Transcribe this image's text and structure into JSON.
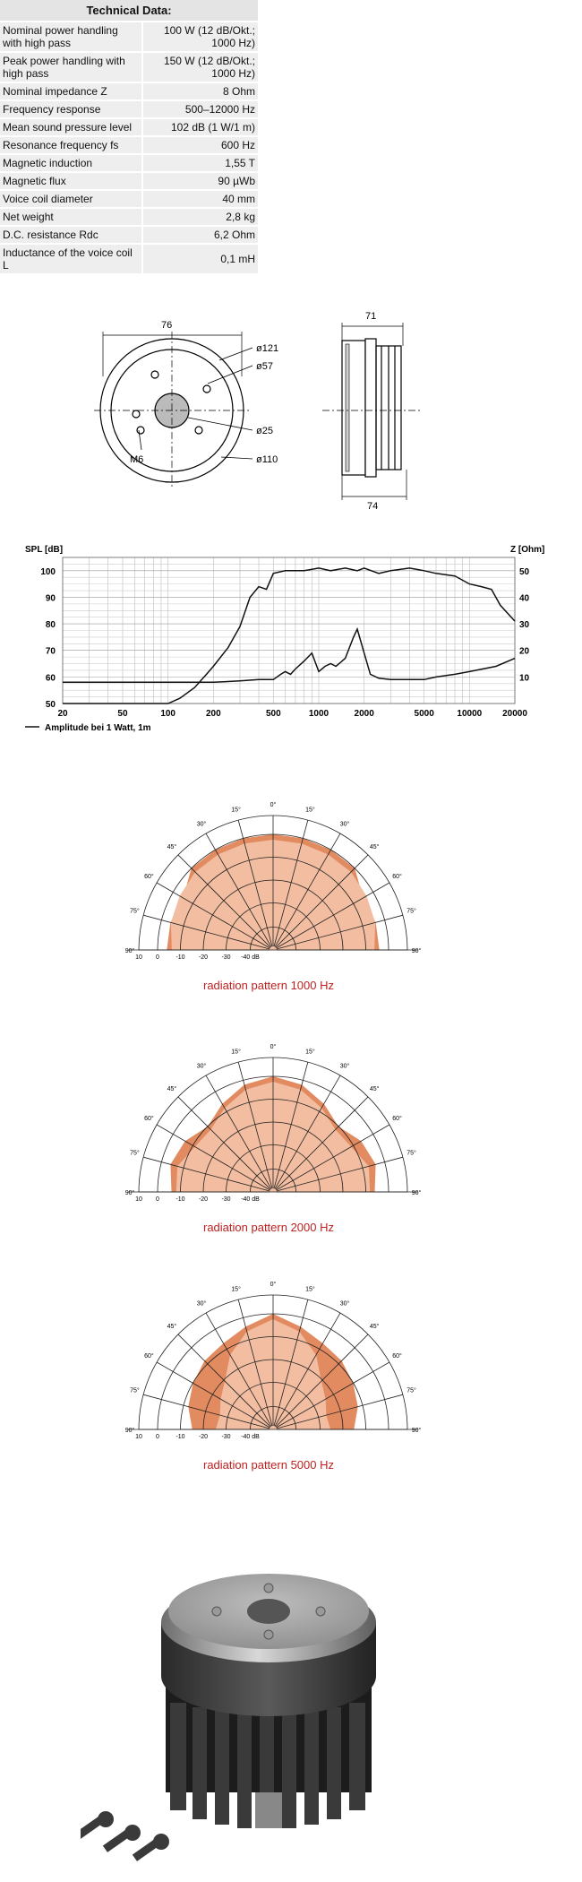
{
  "tech_data": {
    "title": "Technical Data:",
    "rows": [
      {
        "label": "Nominal power handling with high pass",
        "value": "100 W (12 dB/Okt.; 1000 Hz)"
      },
      {
        "label": "Peak power handling with high pass",
        "value": "150 W (12 dB/Okt.; 1000 Hz)"
      },
      {
        "label": "Nominal impedance Z",
        "value": "8 Ohm"
      },
      {
        "label": "Frequency response",
        "value": "500–12000 Hz"
      },
      {
        "label": "Mean sound pressure level",
        "value": "102 dB (1 W/1 m)"
      },
      {
        "label": "Resonance frequency fs",
        "value": "600 Hz"
      },
      {
        "label": "Magnetic induction",
        "value": "1,55 T"
      },
      {
        "label": "Magnetic flux",
        "value": "90 µWb"
      },
      {
        "label": "Voice coil diameter",
        "value": "40 mm"
      },
      {
        "label": "Net weight",
        "value": "2,8 kg"
      },
      {
        "label": "D.C. resistance Rdc",
        "value": "6,2 Ohm"
      },
      {
        "label": "Inductance of the voice coil L",
        "value": "0,1 mH"
      }
    ]
  },
  "drawing": {
    "front": {
      "width": "76",
      "d1": "ø121",
      "d2": "ø57",
      "d3": "ø25",
      "d4": "ø110",
      "screw": "M6"
    },
    "side": {
      "top": "71",
      "bottom": "74"
    }
  },
  "chart_data": {
    "type": "line",
    "y_left_label": "SPL [dB]",
    "y_right_label": "Z [Ohm]",
    "x_ticks": [
      "20",
      "50",
      "100",
      "200",
      "500",
      "1000",
      "2000",
      "5000",
      "10000",
      "20000"
    ],
    "y_left_ticks": [
      "50",
      "60",
      "70",
      "80",
      "90",
      "100"
    ],
    "y_right_ticks": [
      "10",
      "20",
      "30",
      "40",
      "50"
    ],
    "x_scale": "log",
    "xlim": [
      20,
      20000
    ],
    "ylim_left": [
      50,
      105
    ],
    "legend": "Amplitude bei 1 Watt, 1m",
    "grid": true,
    "series": [
      {
        "name": "Amplitude bei 1 Watt, 1m",
        "axis": "left",
        "x": [
          20,
          100,
          120,
          150,
          180,
          200,
          250,
          300,
          350,
          400,
          450,
          500,
          600,
          800,
          1000,
          1200,
          1500,
          1800,
          2000,
          2500,
          3000,
          4000,
          5000,
          6000,
          8000,
          10000,
          12000,
          14000,
          16000,
          20000
        ],
        "y": [
          50,
          50,
          52,
          56,
          61,
          64,
          71,
          79,
          90,
          94,
          93,
          99,
          100,
          100,
          101,
          100,
          101,
          100,
          101,
          99,
          100,
          101,
          100,
          99,
          98,
          95,
          94,
          93,
          87,
          81
        ]
      },
      {
        "name": "Impedance",
        "axis": "right",
        "x": [
          20,
          100,
          200,
          300,
          400,
          500,
          560,
          600,
          650,
          700,
          800,
          900,
          1000,
          1100,
          1200,
          1300,
          1500,
          1700,
          1800,
          2000,
          2200,
          2500,
          3000,
          4000,
          5000,
          6000,
          8000,
          10000,
          15000,
          20000
        ],
        "y": [
          8,
          8,
          8,
          8.5,
          9,
          9,
          11,
          12,
          11,
          13,
          16,
          19,
          12,
          14,
          15,
          14,
          17,
          25,
          28,
          19,
          11,
          9.5,
          9,
          9,
          9,
          10,
          11,
          12,
          14,
          17
        ]
      }
    ]
  },
  "polar_common": {
    "angles": [
      "0°",
      "15°",
      "30°",
      "45°",
      "60°",
      "75°",
      "90°"
    ],
    "rings": [
      "10",
      "0",
      "-10",
      "-20",
      "-30",
      "-40 dB"
    ]
  },
  "polar": [
    {
      "caption": "radiation pattern 1000 Hz"
    },
    {
      "caption": "radiation pattern 2000 Hz"
    },
    {
      "caption": "radiation pattern 5000 Hz"
    }
  ],
  "colors": {
    "polar_fill_light": "#f2bda0",
    "polar_fill_dark": "#e28a60",
    "caption": "#c02020"
  }
}
